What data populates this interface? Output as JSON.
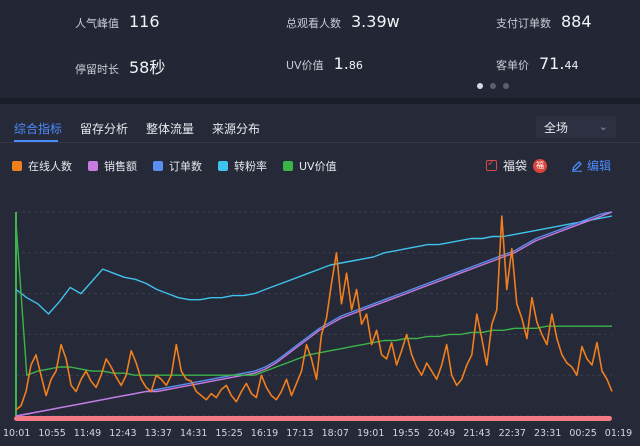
{
  "stats": [
    {
      "label": "人气峰值",
      "value": "116"
    },
    {
      "label": "总观看人数",
      "value": "3.39w"
    },
    {
      "label": "支付订单数",
      "value": "884"
    },
    {
      "label": "停留时长",
      "value": "58秒"
    },
    {
      "label": "UV价值",
      "value_main": "1.",
      "value_small": "86"
    },
    {
      "label": "客单价",
      "value_main": "71.",
      "value_small": "44"
    }
  ],
  "tabs": [
    "综合指标",
    "留存分析",
    "整体流量",
    "来源分布"
  ],
  "scope_select": {
    "value": "全场"
  },
  "legend": [
    {
      "label": "在线人数",
      "color": "#f07f1e"
    },
    {
      "label": "销售额",
      "color": "#c77ae0"
    },
    {
      "label": "订单数",
      "color": "#5a8ef0"
    },
    {
      "label": "转粉率",
      "color": "#3fc3ee"
    },
    {
      "label": "UV价值",
      "color": "#3ab54a"
    }
  ],
  "fudai": {
    "label": "福袋",
    "checked": true
  },
  "edit_label": "编辑",
  "chart_data": {
    "type": "line",
    "x_ticks": [
      "10:01",
      "10:55",
      "11:49",
      "12:43",
      "13:37",
      "14:31",
      "15:25",
      "16:19",
      "17:13",
      "18:07",
      "19:01",
      "19:55",
      "20:49",
      "21:43",
      "22:37",
      "23:31",
      "00:25",
      "01:19"
    ],
    "note_series_normalized_0_1": true,
    "series": [
      {
        "name": "在线人数",
        "color": "#f07f1e",
        "values": [
          0.03,
          0.05,
          0.12,
          0.25,
          0.3,
          0.2,
          0.1,
          0.18,
          0.22,
          0.35,
          0.28,
          0.15,
          0.12,
          0.18,
          0.22,
          0.17,
          0.14,
          0.2,
          0.28,
          0.24,
          0.19,
          0.15,
          0.2,
          0.32,
          0.26,
          0.18,
          0.14,
          0.12,
          0.2,
          0.18,
          0.15,
          0.2,
          0.35,
          0.22,
          0.18,
          0.17,
          0.12,
          0.1,
          0.08,
          0.11,
          0.09,
          0.13,
          0.15,
          0.1,
          0.07,
          0.12,
          0.16,
          0.11,
          0.09,
          0.2,
          0.14,
          0.1,
          0.08,
          0.12,
          0.18,
          0.1,
          0.16,
          0.22,
          0.35,
          0.28,
          0.18,
          0.4,
          0.48,
          0.65,
          0.8,
          0.55,
          0.7,
          0.52,
          0.62,
          0.45,
          0.5,
          0.35,
          0.42,
          0.3,
          0.28,
          0.36,
          0.25,
          0.32,
          0.4,
          0.3,
          0.24,
          0.2,
          0.26,
          0.22,
          0.18,
          0.25,
          0.35,
          0.2,
          0.15,
          0.18,
          0.25,
          0.3,
          0.5,
          0.38,
          0.25,
          0.45,
          0.52,
          0.98,
          0.62,
          0.82,
          0.55,
          0.48,
          0.38,
          0.58,
          0.46,
          0.4,
          0.35,
          0.5,
          0.38,
          0.3,
          0.26,
          0.24,
          0.2,
          0.34,
          0.28,
          0.25,
          0.36,
          0.22,
          0.18,
          0.12
        ]
      },
      {
        "name": "销售额",
        "color": "#c77ae0",
        "values": [
          0.0,
          0.01,
          0.02,
          0.03,
          0.04,
          0.05,
          0.06,
          0.07,
          0.08,
          0.09,
          0.1,
          0.11,
          0.12,
          0.12,
          0.13,
          0.14,
          0.15,
          0.16,
          0.17,
          0.18,
          0.19,
          0.2,
          0.21,
          0.23,
          0.26,
          0.3,
          0.34,
          0.38,
          0.42,
          0.45,
          0.48,
          0.5,
          0.52,
          0.54,
          0.56,
          0.58,
          0.6,
          0.62,
          0.64,
          0.66,
          0.68,
          0.7,
          0.72,
          0.74,
          0.76,
          0.78,
          0.8,
          0.83,
          0.86,
          0.88,
          0.9,
          0.92,
          0.94,
          0.96,
          0.98,
          1.0
        ]
      },
      {
        "name": "订单数",
        "color": "#5a8ef0",
        "values": [
          0.0,
          0.01,
          0.02,
          0.03,
          0.04,
          0.05,
          0.06,
          0.07,
          0.08,
          0.09,
          0.1,
          0.11,
          0.12,
          0.13,
          0.14,
          0.15,
          0.16,
          0.17,
          0.18,
          0.19,
          0.2,
          0.21,
          0.22,
          0.24,
          0.27,
          0.31,
          0.35,
          0.39,
          0.43,
          0.46,
          0.49,
          0.51,
          0.53,
          0.55,
          0.57,
          0.59,
          0.61,
          0.63,
          0.65,
          0.67,
          0.69,
          0.71,
          0.73,
          0.75,
          0.77,
          0.79,
          0.81,
          0.84,
          0.87,
          0.89,
          0.91,
          0.93,
          0.95,
          0.97,
          0.99,
          1.0
        ]
      },
      {
        "name": "转粉率",
        "color": "#3fc3ee",
        "values": [
          0.62,
          0.58,
          0.55,
          0.5,
          0.56,
          0.63,
          0.6,
          0.66,
          0.72,
          0.7,
          0.68,
          0.67,
          0.65,
          0.62,
          0.6,
          0.58,
          0.57,
          0.57,
          0.58,
          0.58,
          0.59,
          0.59,
          0.6,
          0.62,
          0.64,
          0.66,
          0.68,
          0.7,
          0.72,
          0.74,
          0.75,
          0.76,
          0.77,
          0.78,
          0.8,
          0.81,
          0.82,
          0.83,
          0.84,
          0.84,
          0.85,
          0.86,
          0.87,
          0.87,
          0.88,
          0.88,
          0.89,
          0.9,
          0.91,
          0.92,
          0.93,
          0.94,
          0.95,
          0.96,
          0.97,
          0.98
        ]
      },
      {
        "name": "UV价值",
        "color": "#3ab54a",
        "values": [
          0.95,
          0.2,
          0.22,
          0.23,
          0.24,
          0.24,
          0.23,
          0.22,
          0.22,
          0.21,
          0.21,
          0.2,
          0.2,
          0.2,
          0.2,
          0.2,
          0.2,
          0.2,
          0.2,
          0.2,
          0.2,
          0.2,
          0.2,
          0.22,
          0.24,
          0.26,
          0.28,
          0.3,
          0.31,
          0.32,
          0.33,
          0.34,
          0.35,
          0.36,
          0.37,
          0.37,
          0.38,
          0.38,
          0.39,
          0.39,
          0.4,
          0.4,
          0.41,
          0.41,
          0.42,
          0.42,
          0.43,
          0.43,
          0.43,
          0.44,
          0.44,
          0.44,
          0.44,
          0.44,
          0.44,
          0.44
        ]
      }
    ]
  }
}
